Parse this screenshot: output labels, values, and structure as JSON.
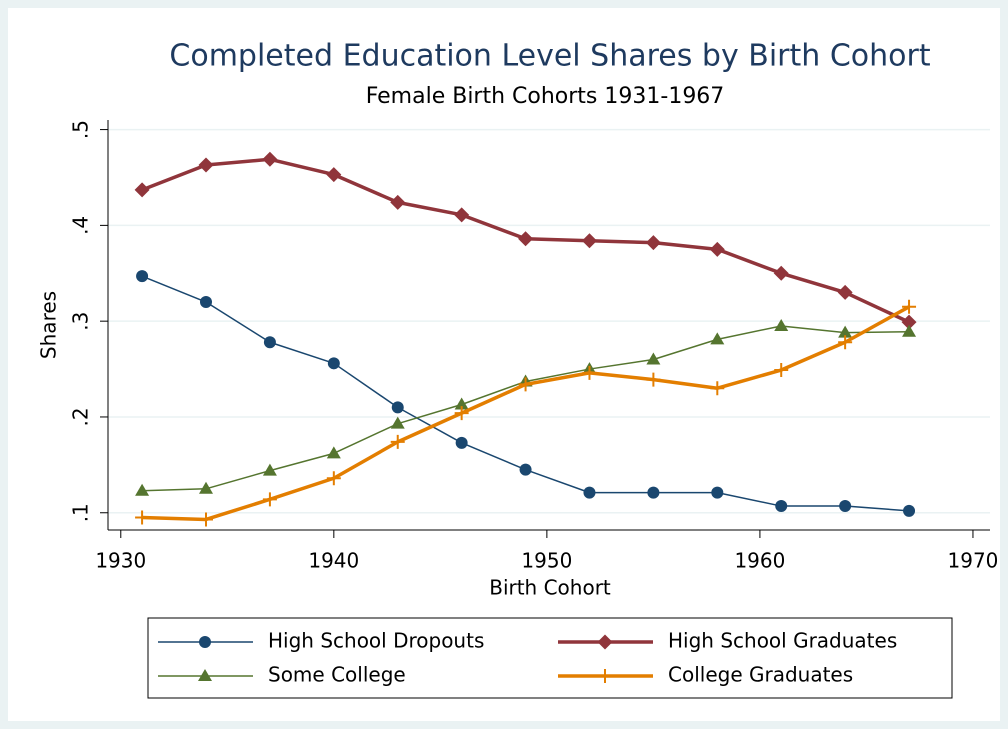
{
  "chart_data": {
    "type": "line",
    "title": "Completed Education Level Shares by Birth Cohort",
    "subtitle": "Female Birth Cohorts 1931-1967",
    "x_label": "Birth Cohort",
    "y_label": "Shares",
    "x": [
      1931,
      1934,
      1937,
      1940,
      1943,
      1946,
      1949,
      1952,
      1955,
      1958,
      1961,
      1964,
      1967
    ],
    "series": [
      {
        "name": "High School Dropouts",
        "color": "#1a476f",
        "marker": "circle",
        "width": 1.5,
        "values": [
          0.347,
          0.32,
          0.278,
          0.256,
          0.21,
          0.173,
          0.145,
          0.121,
          0.121,
          0.121,
          0.107,
          0.107,
          0.102
        ]
      },
      {
        "name": "High School Graduates",
        "color": "#90353b",
        "marker": "diamond",
        "width": 3.5,
        "values": [
          0.437,
          0.463,
          0.469,
          0.453,
          0.424,
          0.411,
          0.386,
          0.384,
          0.382,
          0.375,
          0.35,
          0.33,
          0.299
        ]
      },
      {
        "name": "Some College",
        "color": "#55752f",
        "marker": "triangle",
        "width": 1.5,
        "values": [
          0.123,
          0.125,
          0.144,
          0.162,
          0.193,
          0.213,
          0.237,
          0.25,
          0.26,
          0.281,
          0.295,
          0.288,
          0.289
        ]
      },
      {
        "name": "College Graduates",
        "color": "#e37e00",
        "marker": "plus",
        "width": 3.5,
        "values": [
          0.095,
          0.093,
          0.114,
          0.136,
          0.174,
          0.204,
          0.234,
          0.246,
          0.239,
          0.23,
          0.249,
          0.278,
          0.315
        ]
      }
    ],
    "xlim": [
      1929.4,
      1970.8
    ],
    "ylim": [
      0.082,
      0.51
    ],
    "xticks": [
      1930,
      1940,
      1950,
      1960,
      1970
    ],
    "yticks": [
      {
        "value": 0.1,
        "label": ".1"
      },
      {
        "value": 0.2,
        "label": ".2"
      },
      {
        "value": 0.3,
        "label": ".3"
      },
      {
        "value": 0.4,
        "label": ".4"
      },
      {
        "value": 0.5,
        "label": ".5"
      }
    ],
    "grid": true
  }
}
